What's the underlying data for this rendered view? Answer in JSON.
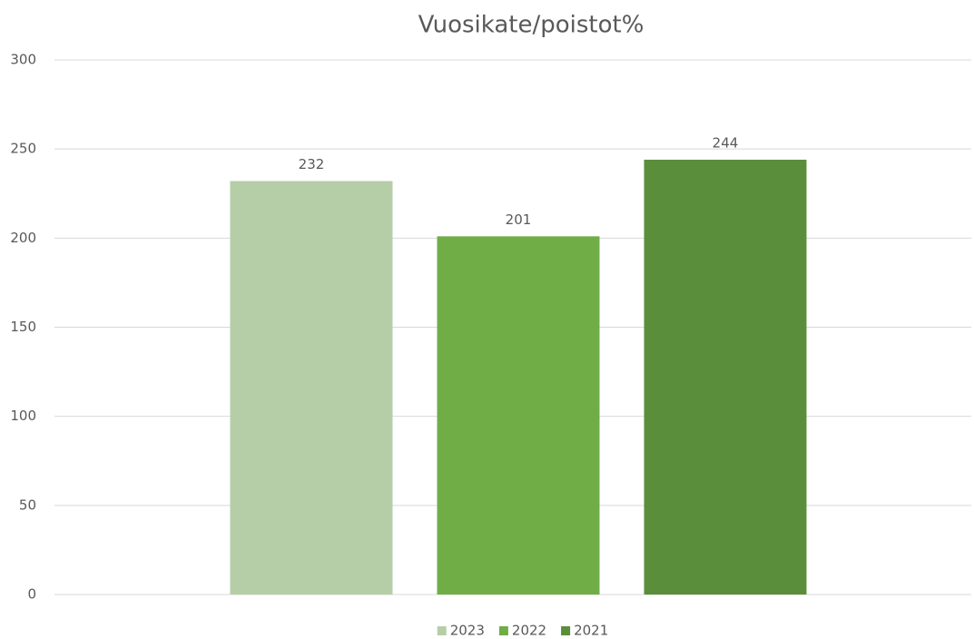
{
  "chart_data": {
    "type": "bar",
    "title": "Vuosikate/poistot%",
    "categories": [
      null
    ],
    "series": [
      {
        "name": "2023",
        "color": "#b5cea7",
        "values": [
          232
        ]
      },
      {
        "name": "2022",
        "color": "#70ad47",
        "values": [
          201
        ]
      },
      {
        "name": "2021",
        "color": "#5a8e3a",
        "values": [
          244
        ]
      }
    ],
    "ylim": [
      0,
      300
    ],
    "yticks": [
      0,
      50,
      100,
      150,
      200,
      250,
      300
    ],
    "grid": true,
    "legend": "bottom"
  }
}
